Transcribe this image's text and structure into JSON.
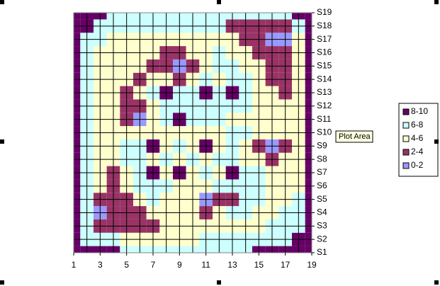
{
  "chart_data": {
    "type": "contour",
    "x": [
      1,
      2,
      3,
      4,
      5,
      6,
      7,
      8,
      9,
      10,
      11,
      12,
      13,
      14,
      15,
      16,
      17,
      18,
      19
    ],
    "xlim": [
      1,
      19
    ],
    "xticks": [
      1,
      3,
      5,
      7,
      9,
      11,
      13,
      15,
      17,
      19
    ],
    "categories": [
      "S1",
      "S2",
      "S3",
      "S4",
      "S5",
      "S6",
      "S7",
      "S8",
      "S9",
      "S10",
      "S11",
      "S12",
      "S13",
      "S14",
      "S15",
      "S16",
      "S17",
      "S18",
      "S19"
    ],
    "levels": [
      0,
      2,
      4,
      6,
      8,
      10
    ],
    "series": [
      {
        "name": "0-2",
        "color": "#9999ff"
      },
      {
        "name": "2-4",
        "color": "#993366"
      },
      {
        "name": "4-6",
        "color": "#ffffcc"
      },
      {
        "name": "6-8",
        "color": "#ccffff"
      },
      {
        "name": "8-10",
        "color": "#660066"
      }
    ],
    "z": [
      [
        9,
        9,
        8,
        8,
        7,
        7,
        7,
        7,
        7,
        7,
        7,
        7,
        7,
        7,
        8,
        8,
        9,
        9,
        9
      ],
      [
        9,
        7,
        7,
        7,
        5,
        5,
        5,
        5,
        5,
        5,
        7,
        7,
        7,
        7,
        7,
        7,
        7,
        9,
        9
      ],
      [
        8,
        7,
        3,
        3,
        3,
        3,
        3,
        5,
        5,
        5,
        5,
        5,
        5,
        5,
        5,
        7,
        7,
        7,
        9
      ],
      [
        8,
        7,
        1,
        3,
        3,
        3,
        5,
        5,
        5,
        5,
        3,
        5,
        7,
        7,
        5,
        5,
        7,
        7,
        8
      ],
      [
        8,
        7,
        3,
        3,
        3,
        5,
        7,
        5,
        5,
        5,
        1,
        3,
        3,
        7,
        7,
        5,
        5,
        7,
        8
      ],
      [
        8,
        7,
        5,
        3,
        5,
        7,
        7,
        7,
        5,
        5,
        5,
        7,
        7,
        7,
        7,
        5,
        5,
        5,
        8
      ],
      [
        8,
        7,
        5,
        3,
        5,
        7,
        9,
        5,
        9,
        5,
        7,
        5,
        9,
        7,
        7,
        5,
        5,
        5,
        8
      ],
      [
        8,
        7,
        5,
        5,
        7,
        7,
        5,
        7,
        5,
        7,
        5,
        7,
        7,
        5,
        5,
        3,
        5,
        5,
        8
      ],
      [
        8,
        7,
        5,
        5,
        7,
        7,
        9,
        5,
        7,
        5,
        9,
        5,
        7,
        5,
        3,
        1,
        3,
        5,
        8
      ],
      [
        8,
        7,
        5,
        5,
        5,
        5,
        5,
        5,
        5,
        5,
        5,
        5,
        7,
        7,
        5,
        5,
        5,
        5,
        8
      ],
      [
        8,
        7,
        5,
        5,
        3,
        1,
        5,
        7,
        9,
        7,
        7,
        7,
        5,
        5,
        5,
        5,
        5,
        5,
        8
      ],
      [
        8,
        7,
        5,
        5,
        3,
        3,
        5,
        7,
        7,
        7,
        7,
        7,
        7,
        7,
        5,
        5,
        5,
        5,
        8
      ],
      [
        8,
        7,
        5,
        5,
        3,
        5,
        7,
        9,
        7,
        7,
        9,
        7,
        9,
        7,
        5,
        5,
        3,
        5,
        8
      ],
      [
        8,
        7,
        5,
        5,
        5,
        3,
        5,
        5,
        3,
        5,
        7,
        5,
        7,
        7,
        5,
        3,
        3,
        5,
        8
      ],
      [
        8,
        7,
        5,
        5,
        5,
        5,
        3,
        3,
        1,
        3,
        5,
        7,
        7,
        5,
        5,
        3,
        3,
        5,
        8
      ],
      [
        8,
        7,
        5,
        5,
        5,
        5,
        5,
        3,
        3,
        5,
        5,
        7,
        5,
        5,
        3,
        3,
        3,
        5,
        8
      ],
      [
        9,
        7,
        7,
        5,
        5,
        5,
        5,
        5,
        5,
        5,
        5,
        5,
        5,
        3,
        3,
        1,
        1,
        5,
        8
      ],
      [
        9,
        8,
        7,
        7,
        7,
        7,
        7,
        7,
        7,
        7,
        7,
        7,
        3,
        3,
        3,
        3,
        3,
        7,
        9
      ],
      [
        9,
        9,
        8,
        7,
        7,
        7,
        7,
        7,
        7,
        7,
        7,
        7,
        7,
        7,
        7,
        7,
        7,
        8,
        9
      ]
    ],
    "grid": true,
    "legend": "right",
    "tooltip": "Plot Area"
  }
}
